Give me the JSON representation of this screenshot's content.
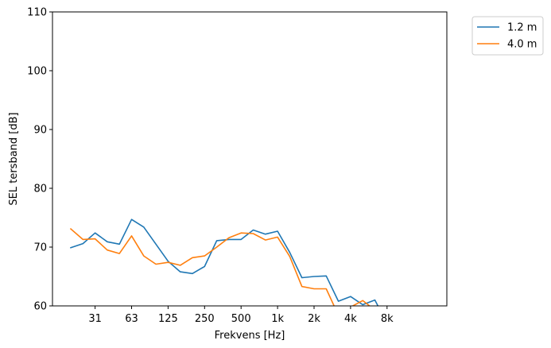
{
  "chart_data": {
    "type": "line",
    "xlabel": "Frekvens [Hz]",
    "ylabel": "SEL tersband [dB]",
    "ylim": [
      60,
      110
    ],
    "yticks": [
      60,
      70,
      80,
      90,
      100,
      110
    ],
    "xtick_labels": [
      "31",
      "63",
      "125",
      "250",
      "500",
      "1k",
      "2k",
      "4k",
      "8k"
    ],
    "x": [
      20,
      25,
      31.5,
      40,
      50,
      63,
      80,
      100,
      125,
      160,
      200,
      250,
      315,
      400,
      500,
      630,
      800,
      1000,
      1250,
      1600,
      2000,
      2500,
      3150,
      4000,
      5000,
      6300,
      8000
    ],
    "series": [
      {
        "name": "1.2 m",
        "color": "#1f77b4",
        "values": [
          69.9,
          70.6,
          72.4,
          70.9,
          70.5,
          74.7,
          73.4,
          70.5,
          67.6,
          65.8,
          65.5,
          66.7,
          71.1,
          71.3,
          71.3,
          72.9,
          72.2,
          72.7,
          69.1,
          64.8,
          65.0,
          65.1,
          60.8,
          61.6,
          60.2,
          61.0,
          57.0
        ]
      },
      {
        "name": "4.0 m",
        "color": "#ff7f0e",
        "values": [
          73.1,
          71.3,
          71.4,
          69.5,
          68.9,
          71.9,
          68.5,
          67.1,
          67.4,
          66.9,
          68.2,
          68.5,
          70.0,
          71.6,
          72.4,
          72.3,
          71.2,
          71.7,
          68.4,
          63.3,
          62.9,
          62.9,
          58.4,
          59.8,
          60.9,
          59.3,
          56.5
        ]
      }
    ],
    "legend": "outside-top-right",
    "grid": false
  }
}
